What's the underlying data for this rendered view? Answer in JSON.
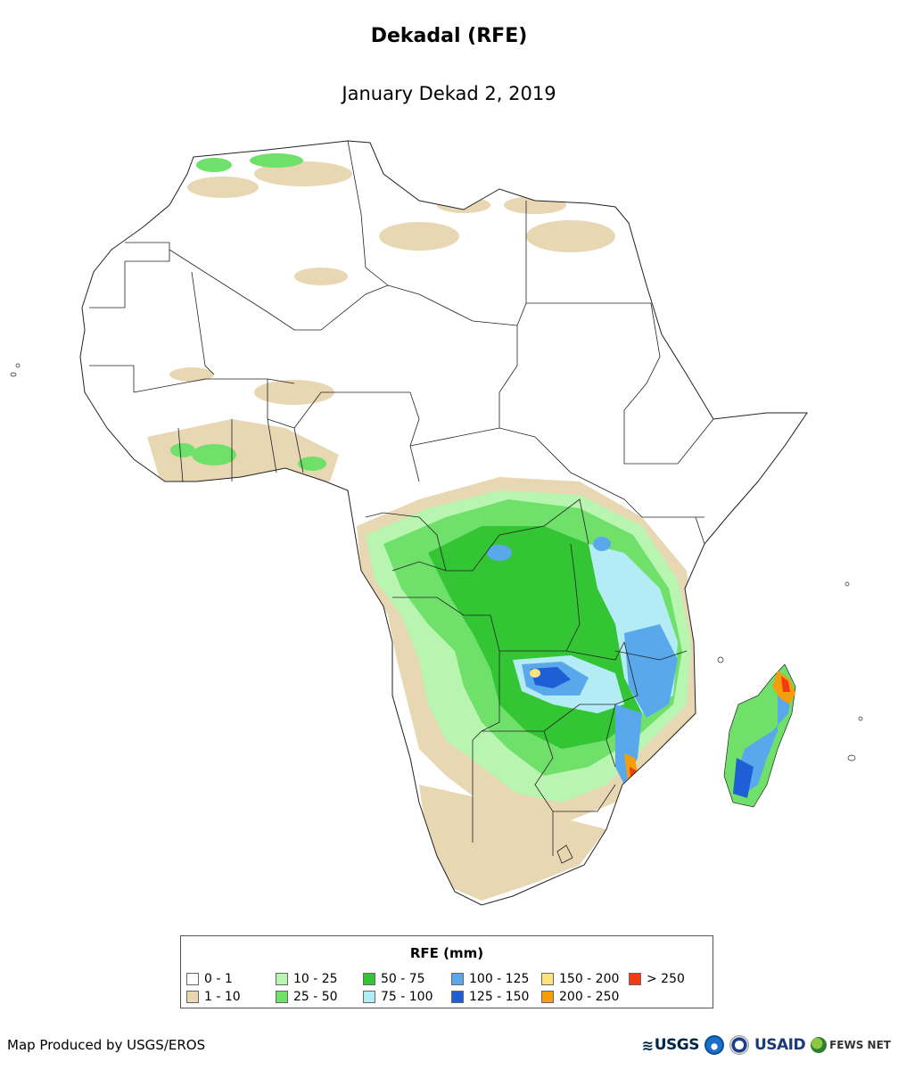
{
  "title": "Dekadal (RFE)",
  "subtitle": "January Dekad 2, 2019",
  "legend": {
    "title": "RFE (mm)",
    "classes": [
      {
        "label": "0 - 1",
        "color": "#ffffff"
      },
      {
        "label": "1 - 10",
        "color": "#e8d7b3"
      },
      {
        "label": "10 - 25",
        "color": "#b7f5b0"
      },
      {
        "label": "25 - 50",
        "color": "#6fe06a"
      },
      {
        "label": "50 - 75",
        "color": "#33c533"
      },
      {
        "label": "75 - 100",
        "color": "#b3ecf5"
      },
      {
        "label": "100 - 125",
        "color": "#5aa8ec"
      },
      {
        "label": "125 - 150",
        "color": "#1f5fd6"
      },
      {
        "label": "150 - 200",
        "color": "#fbe27c"
      },
      {
        "label": "200 - 250",
        "color": "#f59d0b"
      },
      {
        "label": "> 250",
        "color": "#f23b12"
      }
    ]
  },
  "credit": "Map Produced by USGS/EROS",
  "logos": {
    "usgs": "USGS",
    "usaid": "USAID",
    "fews": "FEWS NET"
  }
}
